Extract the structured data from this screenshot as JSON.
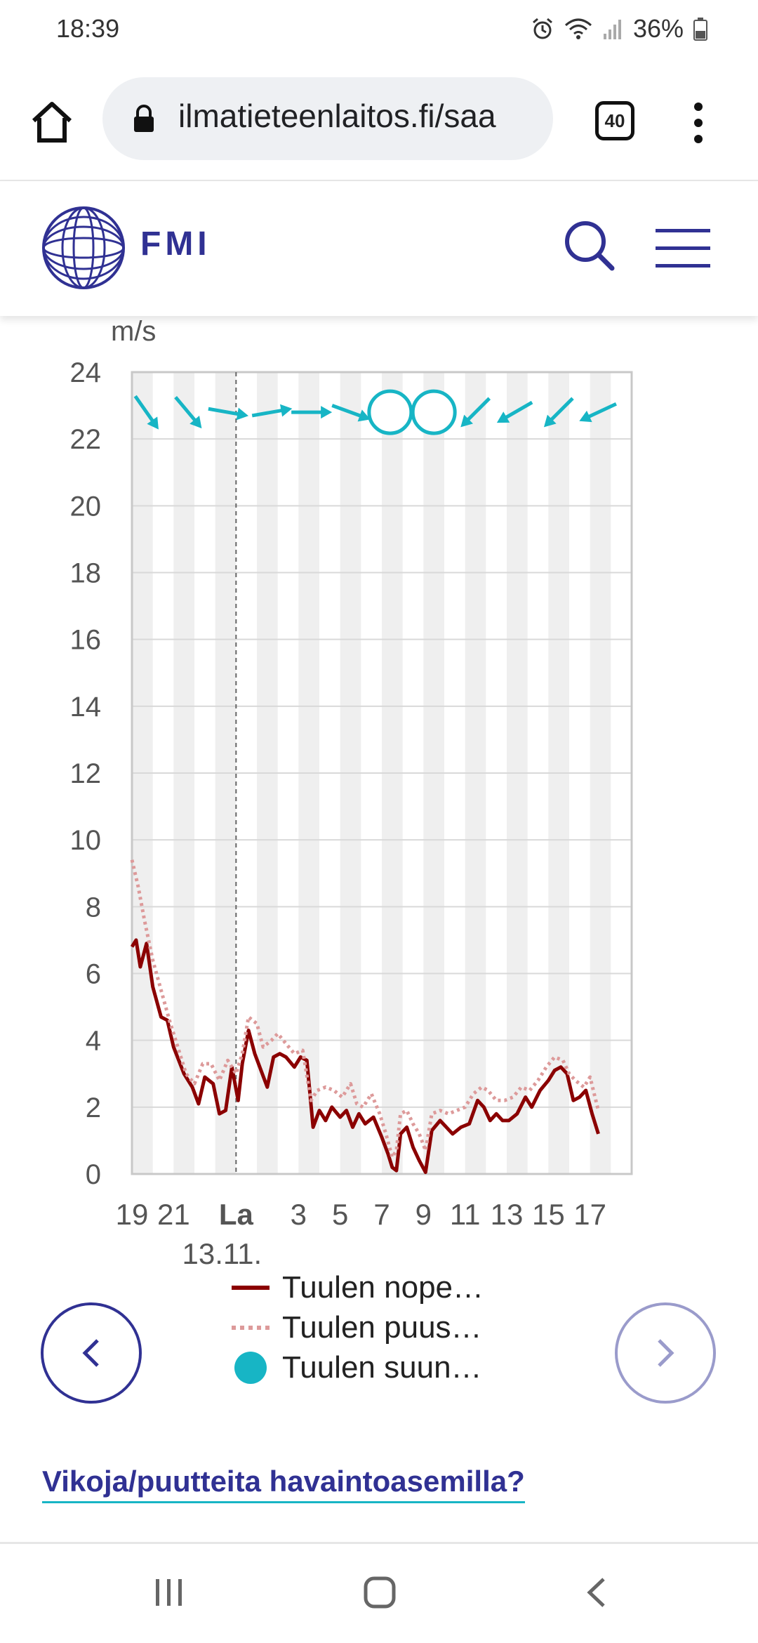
{
  "status_bar": {
    "time": "18:39",
    "battery": "36%"
  },
  "browser": {
    "url": "ilmatieteenlaitos.fi/saa",
    "tab_count": "40"
  },
  "header": {
    "logo_text": "FMI"
  },
  "chart_data": {
    "type": "line",
    "ylabel": "m/s",
    "ylim": [
      0,
      24
    ],
    "yticks": [
      "0",
      "2",
      "4",
      "6",
      "8",
      "10",
      "12",
      "14",
      "16",
      "18",
      "20",
      "22",
      "24"
    ],
    "x_hours": [
      19,
      20,
      21,
      22,
      23,
      24,
      25,
      26,
      27,
      28,
      29,
      30,
      31,
      32,
      33,
      34,
      35,
      36,
      37,
      38,
      39,
      40,
      41,
      42,
      43
    ],
    "xticks": [
      {
        "hour": 19,
        "label": "19"
      },
      {
        "hour": 21,
        "label": "21"
      },
      {
        "hour": 24,
        "label": "La",
        "sublabel": "13.11.",
        "bold": true
      },
      {
        "hour": 27,
        "label": "3"
      },
      {
        "hour": 29,
        "label": "5"
      },
      {
        "hour": 31,
        "label": "7"
      },
      {
        "hour": 33,
        "label": "9"
      },
      {
        "hour": 35,
        "label": "11"
      },
      {
        "hour": 37,
        "label": "13"
      },
      {
        "hour": 39,
        "label": "15"
      },
      {
        "hour": 41,
        "label": "17"
      }
    ],
    "day_marker_hour": 24,
    "series": [
      {
        "name": "Tuulen nopeus",
        "color": "#8b0000",
        "style": "solid",
        "points": [
          [
            19,
            6.8
          ],
          [
            19.2,
            7.0
          ],
          [
            19.4,
            6.2
          ],
          [
            19.7,
            6.9
          ],
          [
            20,
            5.6
          ],
          [
            20.4,
            4.7
          ],
          [
            20.7,
            4.6
          ],
          [
            21,
            3.8
          ],
          [
            21.5,
            3.0
          ],
          [
            21.9,
            2.6
          ],
          [
            22.2,
            2.1
          ],
          [
            22.5,
            2.9
          ],
          [
            22.9,
            2.7
          ],
          [
            23.2,
            1.8
          ],
          [
            23.5,
            1.9
          ],
          [
            23.8,
            3.2
          ],
          [
            24.1,
            2.2
          ],
          [
            24.3,
            3.3
          ],
          [
            24.6,
            4.3
          ],
          [
            24.9,
            3.6
          ],
          [
            25.2,
            3.1
          ],
          [
            25.5,
            2.6
          ],
          [
            25.8,
            3.5
          ],
          [
            26.1,
            3.6
          ],
          [
            26.4,
            3.5
          ],
          [
            26.8,
            3.2
          ],
          [
            27.1,
            3.5
          ],
          [
            27.4,
            3.4
          ],
          [
            27.7,
            1.4
          ],
          [
            28,
            1.9
          ],
          [
            28.3,
            1.6
          ],
          [
            28.6,
            2.0
          ],
          [
            29,
            1.7
          ],
          [
            29.3,
            1.9
          ],
          [
            29.6,
            1.4
          ],
          [
            29.9,
            1.8
          ],
          [
            30.2,
            1.5
          ],
          [
            30.6,
            1.7
          ],
          [
            31,
            1.1
          ],
          [
            31.3,
            0.6
          ],
          [
            31.5,
            0.2
          ],
          [
            31.7,
            0.1
          ],
          [
            31.9,
            1.2
          ],
          [
            32.2,
            1.4
          ],
          [
            32.5,
            0.8
          ],
          [
            32.8,
            0.4
          ],
          [
            33.1,
            0.05
          ],
          [
            33.4,
            1.3
          ],
          [
            33.8,
            1.6
          ],
          [
            34.1,
            1.4
          ],
          [
            34.4,
            1.2
          ],
          [
            34.8,
            1.4
          ],
          [
            35.2,
            1.5
          ],
          [
            35.6,
            2.2
          ],
          [
            35.9,
            2.0
          ],
          [
            36.2,
            1.6
          ],
          [
            36.5,
            1.8
          ],
          [
            36.8,
            1.6
          ],
          [
            37.1,
            1.6
          ],
          [
            37.5,
            1.8
          ],
          [
            37.9,
            2.3
          ],
          [
            38.2,
            2.0
          ],
          [
            38.6,
            2.5
          ],
          [
            39,
            2.8
          ],
          [
            39.3,
            3.1
          ],
          [
            39.6,
            3.2
          ],
          [
            39.9,
            3.0
          ],
          [
            40.2,
            2.2
          ],
          [
            40.5,
            2.3
          ],
          [
            40.8,
            2.5
          ],
          [
            41.1,
            1.8
          ],
          [
            41.4,
            1.2
          ]
        ]
      },
      {
        "name": "Tuulen puuska",
        "color": "#dd9a9a",
        "style": "dotted",
        "points": [
          [
            19,
            9.4
          ],
          [
            19.3,
            8.6
          ],
          [
            19.6,
            7.6
          ],
          [
            20,
            6.4
          ],
          [
            20.4,
            5.5
          ],
          [
            20.8,
            4.6
          ],
          [
            21.2,
            3.8
          ],
          [
            21.6,
            3.0
          ],
          [
            22,
            2.7
          ],
          [
            22.4,
            3.3
          ],
          [
            22.8,
            3.3
          ],
          [
            23.2,
            2.8
          ],
          [
            23.6,
            3.4
          ],
          [
            24,
            3.0
          ],
          [
            24.3,
            3.6
          ],
          [
            24.6,
            4.7
          ],
          [
            25,
            4.5
          ],
          [
            25.3,
            3.8
          ],
          [
            25.7,
            4.0
          ],
          [
            26,
            4.2
          ],
          [
            26.4,
            3.9
          ],
          [
            26.8,
            3.6
          ],
          [
            27.2,
            3.7
          ],
          [
            27.6,
            2.2
          ],
          [
            27.9,
            2.5
          ],
          [
            28.3,
            2.6
          ],
          [
            28.7,
            2.5
          ],
          [
            29.1,
            2.3
          ],
          [
            29.5,
            2.7
          ],
          [
            29.8,
            2.1
          ],
          [
            30.1,
            2.0
          ],
          [
            30.5,
            2.4
          ],
          [
            30.9,
            1.8
          ],
          [
            31.2,
            1.2
          ],
          [
            31.5,
            0.5
          ],
          [
            31.7,
            0.7
          ],
          [
            31.9,
            1.8
          ],
          [
            32.2,
            1.9
          ],
          [
            32.5,
            1.5
          ],
          [
            32.8,
            1.2
          ],
          [
            33.1,
            0.7
          ],
          [
            33.4,
            1.8
          ],
          [
            33.8,
            1.9
          ],
          [
            34.2,
            1.8
          ],
          [
            34.6,
            1.9
          ],
          [
            35,
            2.0
          ],
          [
            35.4,
            2.4
          ],
          [
            35.8,
            2.6
          ],
          [
            36.1,
            2.5
          ],
          [
            36.5,
            2.2
          ],
          [
            36.9,
            2.2
          ],
          [
            37.3,
            2.3
          ],
          [
            37.7,
            2.6
          ],
          [
            38.1,
            2.5
          ],
          [
            38.5,
            2.8
          ],
          [
            38.9,
            3.2
          ],
          [
            39.3,
            3.5
          ],
          [
            39.7,
            3.4
          ],
          [
            40,
            3.0
          ],
          [
            40.3,
            2.8
          ],
          [
            40.7,
            2.6
          ],
          [
            41,
            2.9
          ],
          [
            41.4,
            1.9
          ]
        ]
      }
    ],
    "wind_direction": {
      "name": "Tuulen suunta",
      "color": "#17b5c5",
      "y": 22.8,
      "items": [
        {
          "hour": 19.7,
          "to_deg": 145
        },
        {
          "hour": 21.7,
          "to_deg": 140
        },
        {
          "hour": 23.6,
          "to_deg": 100
        },
        {
          "hour": 25.7,
          "to_deg": 80
        },
        {
          "hour": 27.6,
          "to_deg": 90
        },
        {
          "hour": 29.5,
          "to_deg": 110
        },
        {
          "hour": 31.4,
          "calm": true
        },
        {
          "hour": 33.5,
          "calm": true
        },
        {
          "hour": 35.5,
          "to_deg": 225
        },
        {
          "hour": 37.4,
          "to_deg": 240
        },
        {
          "hour": 39.5,
          "to_deg": 225
        },
        {
          "hour": 41.4,
          "to_deg": 245
        }
      ]
    },
    "legend": [
      "Tuulen nope…",
      "Tuulen puus…",
      "Tuulen suun…"
    ],
    "grid": true
  },
  "links": {
    "issues": "Vikoja/puutteita havaintoasemilla?"
  }
}
